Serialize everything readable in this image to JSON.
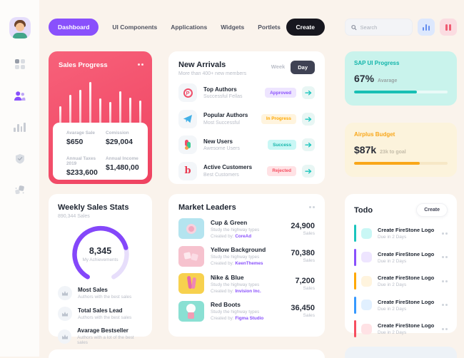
{
  "nav": {
    "items": [
      {
        "label": "Dashboard"
      },
      {
        "label": "UI Components"
      },
      {
        "label": "Applications"
      },
      {
        "label": "Widgets"
      },
      {
        "label": "Portlets"
      }
    ],
    "create_label": "Create"
  },
  "search": {
    "placeholder": "Search"
  },
  "sales_progress": {
    "title": "Sales Progress",
    "bars": [
      34,
      58,
      68,
      84,
      50,
      42,
      64,
      52,
      46
    ],
    "stats": [
      {
        "label": "Avarage Sale",
        "value": "$650"
      },
      {
        "label": "Comission",
        "value": "$29,004"
      },
      {
        "label": "Annual Taxes 2019",
        "value": "$233,600"
      },
      {
        "label": "Annual Income",
        "value": "$1,480,00"
      }
    ]
  },
  "new_arrivals": {
    "title": "New Arrivals",
    "subtitle": "More than 400+ new members",
    "week_label": "Week",
    "day_label": "Day",
    "items": [
      {
        "title": "Top Authors",
        "subtitle": "Successful Fellas",
        "badge": "Approved"
      },
      {
        "title": "Popular Authors",
        "subtitle": "Most Successful",
        "badge": "In Progress"
      },
      {
        "title": "New Users",
        "subtitle": "Awesome Users",
        "badge": "Success"
      },
      {
        "title": "Active Customers",
        "subtitle": "Best Customers",
        "badge": "Rejected"
      }
    ]
  },
  "sap_progress": {
    "title": "SAP UI Progress",
    "value": "67%",
    "label": "Avarage",
    "percent": 67,
    "color": "#17bfb4"
  },
  "airplus_budget": {
    "title": "Airplus Budget",
    "value": "$87k",
    "label": "23k to goal",
    "percent": 70,
    "color": "#f9a71a"
  },
  "weekly_stats": {
    "title": "Weekly Sales Stats",
    "subtitle": "890,344 Sales",
    "gauge_value": "8,345",
    "gauge_label": "My Achievements",
    "gauge_percent": 75,
    "items": [
      {
        "title": "Most Sales",
        "subtitle": "Authors with the best sales"
      },
      {
        "title": "Total Sales Lead",
        "subtitle": "Authors with the best sales"
      },
      {
        "title": "Avarage Bestseller",
        "subtitle": "Authors with a lot of the best sales"
      }
    ]
  },
  "market_leaders": {
    "title": "Market Leaders",
    "items": [
      {
        "name": "Cup & Green",
        "desc": "Study the highway types",
        "created_by": "Created by:",
        "author": "CoreAd",
        "value": "24,900",
        "unit": "Sales"
      },
      {
        "name": "Yellow Background",
        "desc": "Study the highway types",
        "created_by": "Created by:",
        "author": "KeenThemes",
        "value": "70,380",
        "unit": "Sales"
      },
      {
        "name": "Nike & Blue",
        "desc": "Study the highway types",
        "created_by": "Created by:",
        "author": "Invision Inc.",
        "value": "7,200",
        "unit": "Sales"
      },
      {
        "name": "Red Boots",
        "desc": "Study the highway types",
        "created_by": "Created by:",
        "author": "Figma Studio",
        "value": "36,450",
        "unit": "Sales"
      }
    ]
  },
  "todo": {
    "title": "Todo",
    "create_label": "Create",
    "items": [
      {
        "title": "Create FireStone Logo",
        "due": "Due in 2 Days"
      },
      {
        "title": "Create FireStone Logo",
        "due": "Due in 2 Days"
      },
      {
        "title": "Create FireStone Logo",
        "due": "Due in 2 Days"
      },
      {
        "title": "Create FireStone Logo",
        "due": "Due in 2 Days"
      },
      {
        "title": "Create FireStone Logo",
        "due": "Due in 2 Days"
      }
    ]
  }
}
